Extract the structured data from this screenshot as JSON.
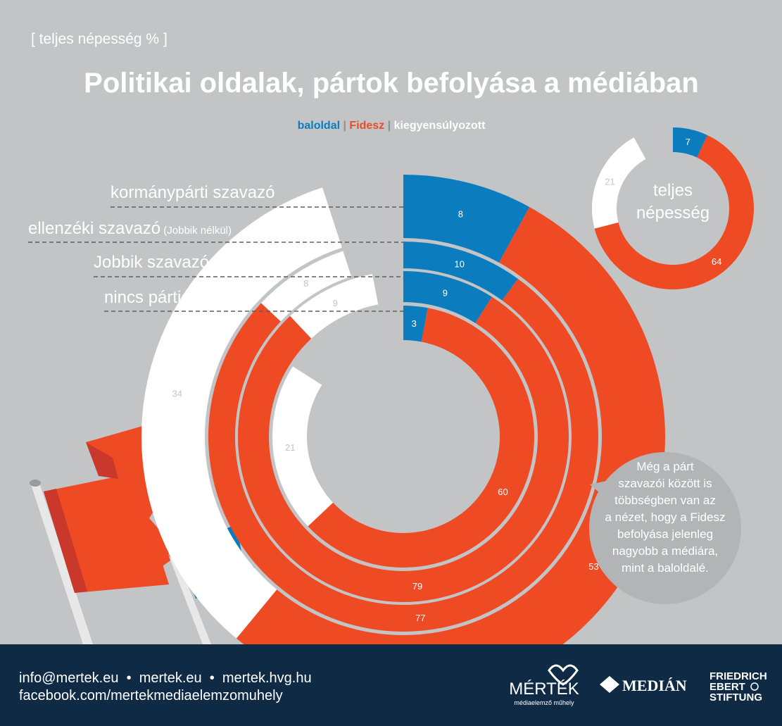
{
  "header": {
    "subtitle": "[ teljes népesség % ]",
    "title": "Politikai oldalak, pártok befolyása a médiában"
  },
  "legend": {
    "items": [
      "baloldal",
      "Fidesz",
      "kiegyensúlyozott"
    ],
    "separator": "|"
  },
  "colors": {
    "baloldal": "#0b7dbe",
    "fidesz": "#ee4b24",
    "kiegyensulyozott": "#ffffff",
    "background": "#c3c4c6",
    "footer": "#0f2a44",
    "bubble": "#b3b4b6"
  },
  "chart_data": [
    {
      "type": "pie",
      "style": "nested-donut",
      "categories": [
        "baloldal",
        "Fidesz",
        "kiegyensúlyozott"
      ],
      "series": [
        {
          "name": "kormánypárti szavazó",
          "values": [
            8,
            53,
            34
          ]
        },
        {
          "name": "ellenzéki szavazó",
          "name_note": "(Jobbik nélkül)",
          "values": [
            10,
            77,
            8
          ]
        },
        {
          "name": "Jobbik szavazó",
          "values": [
            9,
            79,
            9
          ]
        },
        {
          "name": "nincs pártja",
          "values": [
            3,
            60,
            21
          ]
        }
      ]
    },
    {
      "type": "pie",
      "style": "donut",
      "title": "teljes népesség",
      "categories": [
        "baloldal",
        "Fidesz",
        "kiegyensúlyozott"
      ],
      "values": [
        7,
        64,
        21
      ]
    }
  ],
  "callout": {
    "text": "Még a párt szavazói között is többségben van az a nézet, hogy a Fidesz befolyása jelenleg nagyobb a médiára, mint a baloldalé."
  },
  "footer": {
    "contacts": "info@mertek.eu  •  mertek.eu  •  mertek.hvg.hu",
    "facebook": "facebook.com/mertekmediaelemzomuhely",
    "logos": {
      "mertek": "MÉRTÉK",
      "mertek_sub": "médiaelemző műhely",
      "median": "MEDIÁN",
      "fes": [
        "FRIEDRICH",
        "EBERT",
        "STIFTUNG"
      ]
    }
  }
}
